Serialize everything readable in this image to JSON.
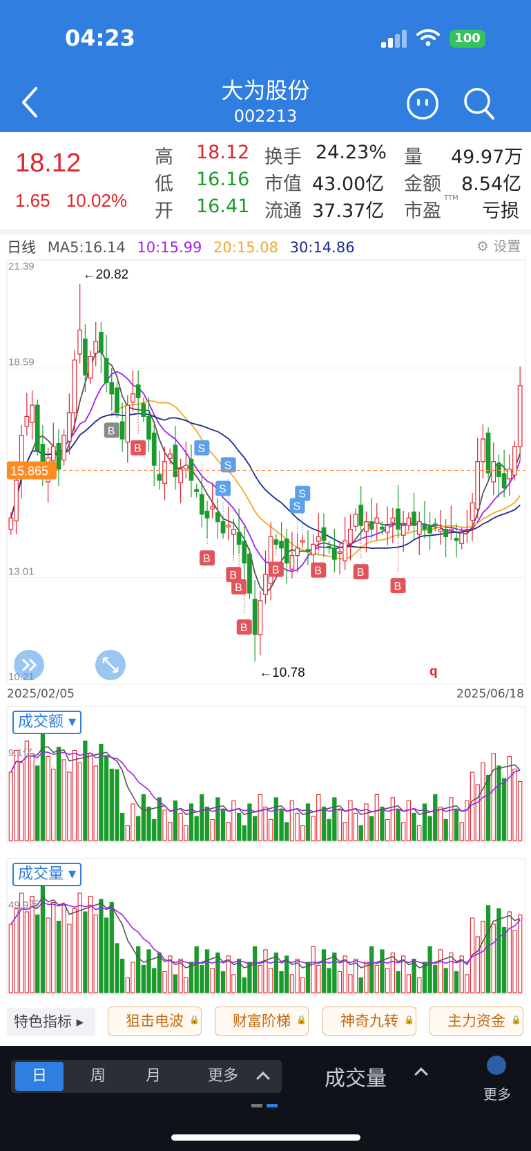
{
  "status": {
    "time": "04:23",
    "battery": "100"
  },
  "header": {
    "title": "大为股份",
    "code": "002213"
  },
  "quote": {
    "price": "18.12",
    "change": "1.65",
    "change_pct": "10.02%",
    "high_label": "高",
    "high": "18.12",
    "low_label": "低",
    "low": "16.16",
    "open_label": "开",
    "open": "16.41",
    "turnover_label": "换手",
    "turnover": "24.23%",
    "mktcap_label": "市值",
    "mktcap": "43.00亿",
    "float_label": "流通",
    "float": "37.37亿",
    "vol_label": "量",
    "vol": "49.97万",
    "amount_label": "金额",
    "amount": "8.54亿",
    "pe_label": "市盈",
    "pe_sup": "TTM",
    "pe": "亏损"
  },
  "kline": {
    "legend_period": "日线",
    "ma5": "MA5:16.14",
    "ma10": "10:15.99",
    "ma20": "20:15.08",
    "ma30": "30:14.86",
    "settings_label": "设置",
    "y_ticks": [
      "21.39",
      "18.59",
      "13.01",
      "10.21"
    ],
    "high_marker": "←20.82",
    "low_marker": "←10.78",
    "current_line": "15.865",
    "misc_label": "q",
    "date_start": "2025/02/05",
    "date_end": "2025/06/18"
  },
  "chart_data": {
    "type": "candlestick",
    "ylim": [
      10.21,
      21.39
    ],
    "x_start": "2025/02/05",
    "x_end": "2025/06/18",
    "high": 20.82,
    "low": 10.78,
    "last_close": 18.12,
    "reference_line": 15.865,
    "series": [
      {
        "name": "MA5",
        "value": 16.14,
        "color": "#555555"
      },
      {
        "name": "MA10",
        "value": 15.99,
        "color": "#a020f0"
      },
      {
        "name": "MA20",
        "value": 15.08,
        "color": "#f5a623"
      },
      {
        "name": "MA30",
        "value": 14.86,
        "color": "#1b2a8f"
      }
    ],
    "closes": [
      14.6,
      15.6,
      16.8,
      17.3,
      17.6,
      16.4,
      15.8,
      16.2,
      16.5,
      15.9,
      16.8,
      17.4,
      18.8,
      19.6,
      18.4,
      18.9,
      19.3,
      19.0,
      18.2,
      17.9,
      17.4,
      16.7,
      17.6,
      17.9,
      17.8,
      17.3,
      16.7,
      16.0,
      15.6,
      16.1,
      16.3,
      15.7,
      15.9,
      16.0,
      15.6,
      15.3,
      14.7,
      14.6,
      14.9,
      14.5,
      14.2,
      14.4,
      14.3,
      13.9,
      13.4,
      12.6,
      11.5,
      12.4,
      13.1,
      14.1,
      13.9,
      13.8,
      13.4,
      13.6,
      13.8,
      14.0,
      13.7,
      13.9,
      14.1,
      14.0,
      13.8,
      13.5,
      13.7,
      14.0,
      14.3,
      14.7,
      14.4,
      14.5,
      14.3,
      14.6,
      14.3,
      14.4,
      14.6,
      14.3,
      14.4,
      14.6,
      14.4,
      14.5,
      14.3,
      14.2,
      14.4,
      14.3,
      14.1,
      14.3,
      14.0,
      14.2,
      14.3,
      15.0,
      16.1,
      16.7,
      15.8,
      16.1,
      15.7,
      15.4,
      15.9,
      16.5,
      18.12
    ],
    "amount_panel": {
      "label": "成交额",
      "tick": "9.1亿"
    },
    "volume_panel": {
      "label": "成交量",
      "tick": "49.9万"
    }
  },
  "tools": {
    "feature_label": "特色指标",
    "buttons": [
      "狙击电波",
      "财富阶梯",
      "神奇九转",
      "主力资金"
    ]
  },
  "bottom": {
    "periods": [
      "日",
      "周",
      "月",
      "更多"
    ],
    "indicator": "成交量",
    "more_label": "更多"
  },
  "colors": {
    "up": "#e0232d",
    "down": "#1a9b2c",
    "accent": "#2f7ee0"
  }
}
